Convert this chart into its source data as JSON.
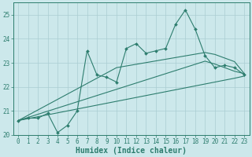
{
  "title": "",
  "xlabel": "Humidex (Indice chaleur)",
  "background_color": "#cce8eb",
  "line_color": "#2d7d6e",
  "grid_color": "#aacdd2",
  "x_data": [
    0,
    1,
    2,
    3,
    4,
    5,
    6,
    7,
    8,
    9,
    10,
    11,
    12,
    13,
    14,
    15,
    16,
    17,
    18,
    19,
    20,
    21,
    22,
    23
  ],
  "y_main": [
    20.6,
    20.7,
    20.7,
    20.9,
    20.1,
    20.4,
    21.0,
    23.5,
    22.5,
    22.4,
    22.2,
    23.6,
    23.8,
    23.4,
    23.5,
    23.6,
    24.6,
    25.2,
    24.4,
    23.3,
    22.8,
    22.9,
    22.8,
    22.5
  ],
  "y_trend1": [
    20.6,
    20.82,
    21.04,
    21.26,
    21.48,
    21.7,
    21.92,
    22.14,
    22.36,
    22.58,
    22.8,
    22.87,
    22.94,
    23.01,
    23.08,
    23.15,
    23.22,
    23.29,
    23.36,
    23.43,
    23.35,
    23.2,
    23.05,
    22.55
  ],
  "y_trend2": [
    20.6,
    20.73,
    20.86,
    20.99,
    21.12,
    21.25,
    21.38,
    21.51,
    21.64,
    21.77,
    21.9,
    22.03,
    22.16,
    22.29,
    22.42,
    22.55,
    22.68,
    22.81,
    22.94,
    23.07,
    22.95,
    22.8,
    22.65,
    22.55
  ],
  "y_trend3": [
    20.6,
    20.68,
    20.76,
    20.84,
    20.92,
    21.0,
    21.08,
    21.16,
    21.24,
    21.32,
    21.4,
    21.48,
    21.56,
    21.64,
    21.72,
    21.8,
    21.88,
    21.96,
    22.04,
    22.12,
    22.2,
    22.28,
    22.36,
    22.45
  ],
  "ylim": [
    20,
    25.5
  ],
  "xlim": [
    -0.5,
    23.5
  ],
  "yticks": [
    20,
    21,
    22,
    23,
    24,
    25
  ],
  "xticks": [
    0,
    1,
    2,
    3,
    4,
    5,
    6,
    7,
    8,
    9,
    10,
    11,
    12,
    13,
    14,
    15,
    16,
    17,
    18,
    19,
    20,
    21,
    22,
    23
  ],
  "fontsize_label": 6.5,
  "fontsize_tick": 5.5,
  "xlabel_fontsize": 7
}
